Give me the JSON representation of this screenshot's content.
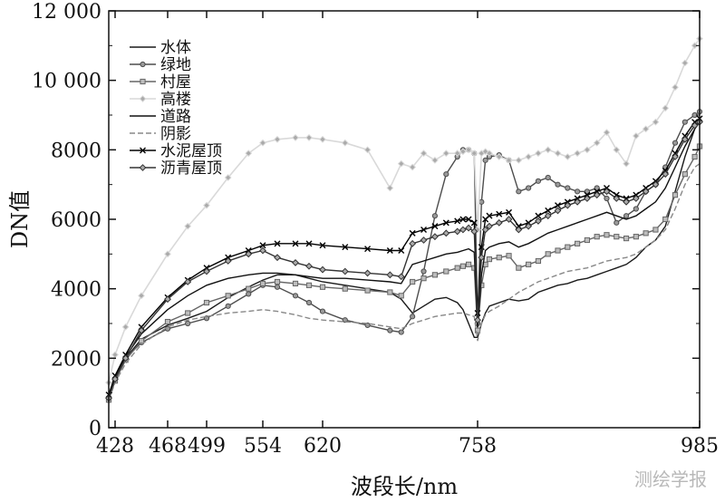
{
  "chart_data": {
    "type": "line",
    "title": "",
    "xlabel": "波段长/nm",
    "ylabel": "DN值",
    "x_tick_labels": [
      "428",
      "468",
      "499",
      "554",
      "620",
      "758",
      "985"
    ],
    "y_tick_labels": [
      "0",
      "2000",
      "4000",
      "6000",
      "8000",
      "10 000",
      "12 000"
    ],
    "ylim": [
      0,
      12000
    ],
    "xlim": [
      420,
      985
    ],
    "x_scale": "nonlinear (tick labels unevenly spaced)",
    "grid": false,
    "legend": {
      "position": "top-left"
    },
    "x": [
      420,
      428,
      436,
      448,
      468,
      484,
      499,
      520,
      540,
      554,
      570,
      590,
      605,
      620,
      640,
      660,
      680,
      690,
      700,
      710,
      720,
      730,
      740,
      745,
      750,
      755,
      758,
      762,
      766,
      770,
      780,
      790,
      800,
      810,
      820,
      830,
      840,
      850,
      860,
      870,
      880,
      890,
      900,
      910,
      920,
      930,
      940,
      950,
      960,
      970,
      980,
      985
    ],
    "series": [
      {
        "name": "水体",
        "style": "solid",
        "color": "#1a1a1a",
        "marker": "none",
        "values": [
          800,
          1400,
          2000,
          2550,
          2950,
          3150,
          3350,
          3750,
          4050,
          4250,
          4400,
          4400,
          4300,
          4200,
          4100,
          4000,
          3900,
          3700,
          3300,
          3500,
          3700,
          3750,
          3600,
          3400,
          3000,
          2600,
          2600,
          3000,
          3300,
          3500,
          3600,
          3700,
          3650,
          3700,
          3900,
          4000,
          4100,
          4150,
          4250,
          4300,
          4400,
          4500,
          4600,
          4700,
          4900,
          5200,
          5400,
          5800,
          6800,
          7800,
          8600,
          8800
        ]
      },
      {
        "name": "绿地",
        "style": "solid",
        "color": "#4d4d4d",
        "marker": "circle",
        "values": [
          800,
          1400,
          2000,
          2450,
          2850,
          3000,
          3150,
          3500,
          3850,
          4100,
          4050,
          3800,
          3600,
          3350,
          3100,
          2950,
          2800,
          2750,
          3200,
          4500,
          6100,
          7300,
          7800,
          8000,
          8000,
          7900,
          3000,
          6500,
          7700,
          7800,
          7850,
          7700,
          6800,
          6900,
          7100,
          7200,
          7000,
          6900,
          6800,
          6800,
          6900,
          6600,
          5900,
          6100,
          6300,
          6800,
          7000,
          7500,
          8200,
          8800,
          9000,
          9100
        ]
      },
      {
        "name": "村屋",
        "style": "solid",
        "color": "#666666",
        "marker": "square",
        "values": [
          800,
          1350,
          1950,
          2500,
          3050,
          3300,
          3600,
          3800,
          4000,
          4150,
          4200,
          4150,
          4100,
          4050,
          4000,
          3950,
          3900,
          3800,
          4200,
          4300,
          4400,
          4500,
          4600,
          4650,
          4700,
          4600,
          2800,
          4100,
          4700,
          4850,
          4900,
          4950,
          4600,
          4700,
          4800,
          5000,
          5100,
          5200,
          5300,
          5400,
          5500,
          5550,
          5500,
          5450,
          5500,
          5600,
          5700,
          6000,
          6700,
          7300,
          7800,
          8100
        ]
      },
      {
        "name": "高楼",
        "style": "solid",
        "color": "#d9d9d9",
        "marker": "diamond",
        "values": [
          1300,
          2100,
          2900,
          3800,
          5000,
          5800,
          6400,
          7200,
          7900,
          8200,
          8300,
          8350,
          8350,
          8300,
          8200,
          8000,
          6900,
          7600,
          7500,
          7900,
          7700,
          7900,
          7900,
          7950,
          8000,
          7900,
          5700,
          7900,
          7950,
          7900,
          7800,
          7700,
          7700,
          7800,
          7900,
          8000,
          7900,
          7800,
          7900,
          8000,
          8200,
          8500,
          8000,
          7600,
          8400,
          8600,
          8800,
          9200,
          9800,
          10500,
          11000,
          11200
        ]
      },
      {
        "name": "道路",
        "style": "solid",
        "color": "#111111",
        "marker": "none",
        "values": [
          900,
          1450,
          2050,
          2700,
          3400,
          3800,
          4100,
          4300,
          4400,
          4450,
          4450,
          4400,
          4350,
          4300,
          4300,
          4250,
          4200,
          4150,
          4700,
          4800,
          4900,
          5000,
          5050,
          5100,
          5150,
          5050,
          2900,
          4400,
          5100,
          5200,
          5300,
          5350,
          5200,
          5300,
          5450,
          5600,
          5700,
          5800,
          5900,
          6000,
          6100,
          6200,
          6100,
          6000,
          6100,
          6300,
          6500,
          6900,
          7500,
          8100,
          8600,
          8900
        ]
      },
      {
        "name": "阴影",
        "style": "dashed",
        "color": "#888888",
        "marker": "none",
        "values": [
          800,
          1300,
          1850,
          2400,
          2900,
          3100,
          3200,
          3300,
          3350,
          3400,
          3350,
          3250,
          3150,
          3100,
          3050,
          3000,
          2900,
          2850,
          3000,
          3100,
          3200,
          3250,
          3300,
          3300,
          3250,
          3200,
          2500,
          3000,
          3250,
          3350,
          3500,
          3700,
          3900,
          4050,
          4200,
          4300,
          4400,
          4500,
          4550,
          4600,
          4700,
          4800,
          4850,
          4900,
          5000,
          5200,
          5400,
          5700,
          6300,
          7000,
          7500,
          7600
        ]
      },
      {
        "name": "水泥屋顶",
        "style": "solid",
        "color": "#000000",
        "marker": "x",
        "values": [
          950,
          1500,
          2100,
          2900,
          3750,
          4250,
          4600,
          4900,
          5100,
          5250,
          5300,
          5300,
          5300,
          5250,
          5200,
          5150,
          5100,
          5100,
          5600,
          5700,
          5800,
          5900,
          5950,
          6000,
          6000,
          5900,
          3300,
          5200,
          6000,
          6100,
          6150,
          6200,
          5800,
          5900,
          6100,
          6250,
          6400,
          6500,
          6600,
          6700,
          6800,
          6900,
          6700,
          6600,
          6700,
          6900,
          7100,
          7400,
          7900,
          8400,
          8800,
          8900
        ]
      },
      {
        "name": "沥青屋顶",
        "style": "solid",
        "color": "#333333",
        "marker": "diamond",
        "values": [
          850,
          1400,
          2000,
          2800,
          3700,
          4200,
          4500,
          4800,
          5000,
          5100,
          4900,
          4750,
          4650,
          4550,
          4500,
          4450,
          4400,
          4350,
          5300,
          5400,
          5500,
          5600,
          5650,
          5700,
          5750,
          5650,
          3100,
          4900,
          5700,
          5800,
          5900,
          6000,
          5700,
          5800,
          5950,
          6100,
          6250,
          6400,
          6500,
          6600,
          6700,
          6800,
          6600,
          6500,
          6600,
          6800,
          7000,
          7300,
          7800,
          8300,
          8700,
          8800
        ]
      }
    ]
  },
  "watermark": "测绘学报"
}
